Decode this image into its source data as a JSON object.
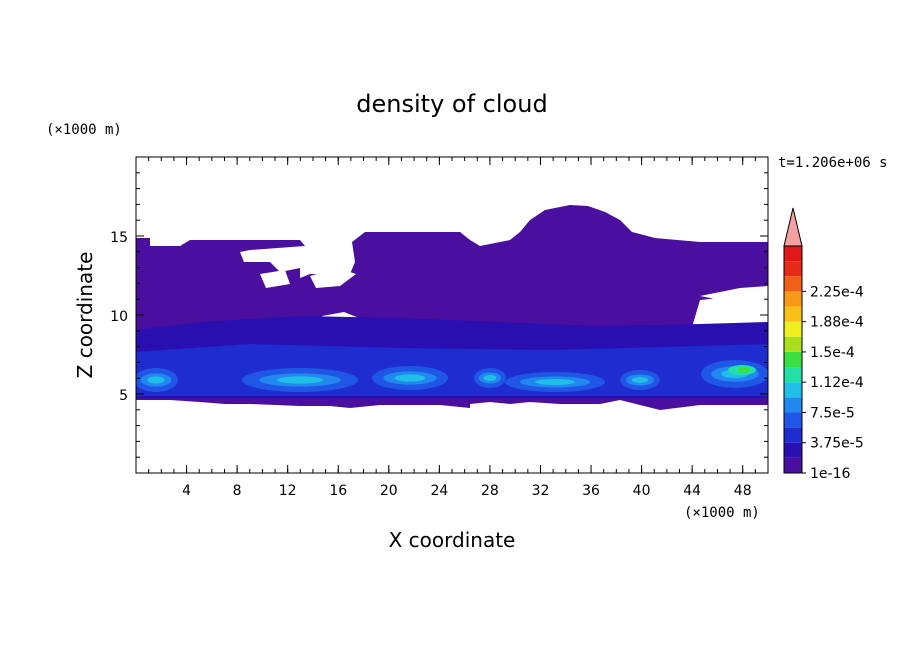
{
  "chart_data": {
    "type": "heatmap",
    "title": "density of cloud",
    "xlabel": "X coordinate",
    "ylabel": "Z coordinate",
    "x_unit": "(×1000 m)",
    "y_unit": "(×1000 m)",
    "time_label": "t=1.206e+06 s",
    "xlim": [
      0,
      50
    ],
    "ylim": [
      0,
      20
    ],
    "xticks": [
      "4",
      "8",
      "12",
      "16",
      "20",
      "24",
      "28",
      "32",
      "36",
      "40",
      "44",
      "48"
    ],
    "yticks": [
      "5",
      "10",
      "15"
    ],
    "colorbar": {
      "labels": [
        "1e-16",
        "3.75e-5",
        "7.5e-5",
        "1.12e-4",
        "1.5e-4",
        "1.88e-4",
        "2.25e-4"
      ],
      "colors": [
        "#4b0fa0",
        "#2a0fb0",
        "#1e2cd0",
        "#1f56e6",
        "#2288f0",
        "#20bfe8",
        "#22e0a8",
        "#3ae040",
        "#a8e020",
        "#f0f020",
        "#f8c018",
        "#f89a18",
        "#f06018",
        "#e82a18",
        "#e01818"
      ],
      "extend_color": "#f4a0a0"
    }
  }
}
